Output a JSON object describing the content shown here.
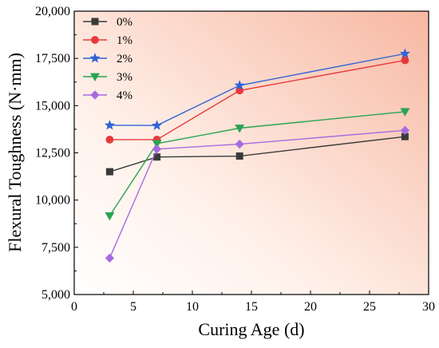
{
  "chart_data": {
    "type": "line",
    "xlabel": "Curing Age (d)",
    "ylabel": "Flexural Toughness (N·mm)",
    "xlim": [
      0,
      30
    ],
    "ylim": [
      5000,
      20000
    ],
    "x_ticks": [
      0,
      5,
      10,
      15,
      20,
      25,
      30
    ],
    "x_tick_labels": [
      "0",
      "5",
      "10",
      "15",
      "20",
      "25",
      "30"
    ],
    "y_ticks": [
      5000,
      7500,
      10000,
      12500,
      15000,
      17500,
      20000
    ],
    "y_tick_labels": [
      "5,000",
      "7,500",
      "10,000",
      "12,500",
      "15,000",
      "17,500",
      "20,000"
    ],
    "grid": false,
    "legend_position": "top-left",
    "background": "gradient from pale pink at the bottom-left to salmon at the top-right",
    "x": [
      3,
      7,
      14,
      28
    ],
    "series": [
      {
        "name": "0%",
        "values": [
          11500,
          12280,
          12330,
          13360
        ],
        "color": "#3a3a3a",
        "marker": "square"
      },
      {
        "name": "1%",
        "values": [
          13200,
          13200,
          15800,
          17400
        ],
        "color": "#e8383c",
        "marker": "circle"
      },
      {
        "name": "2%",
        "values": [
          13960,
          13950,
          16070,
          17750
        ],
        "color": "#2f63d6",
        "marker": "star"
      },
      {
        "name": "3%",
        "values": [
          9170,
          12990,
          13810,
          14680
        ],
        "color": "#2aa452",
        "marker": "triangle-down"
      },
      {
        "name": "4%",
        "values": [
          6930,
          12700,
          12960,
          13690
        ],
        "color": "#a86be0",
        "marker": "diamond"
      }
    ]
  }
}
